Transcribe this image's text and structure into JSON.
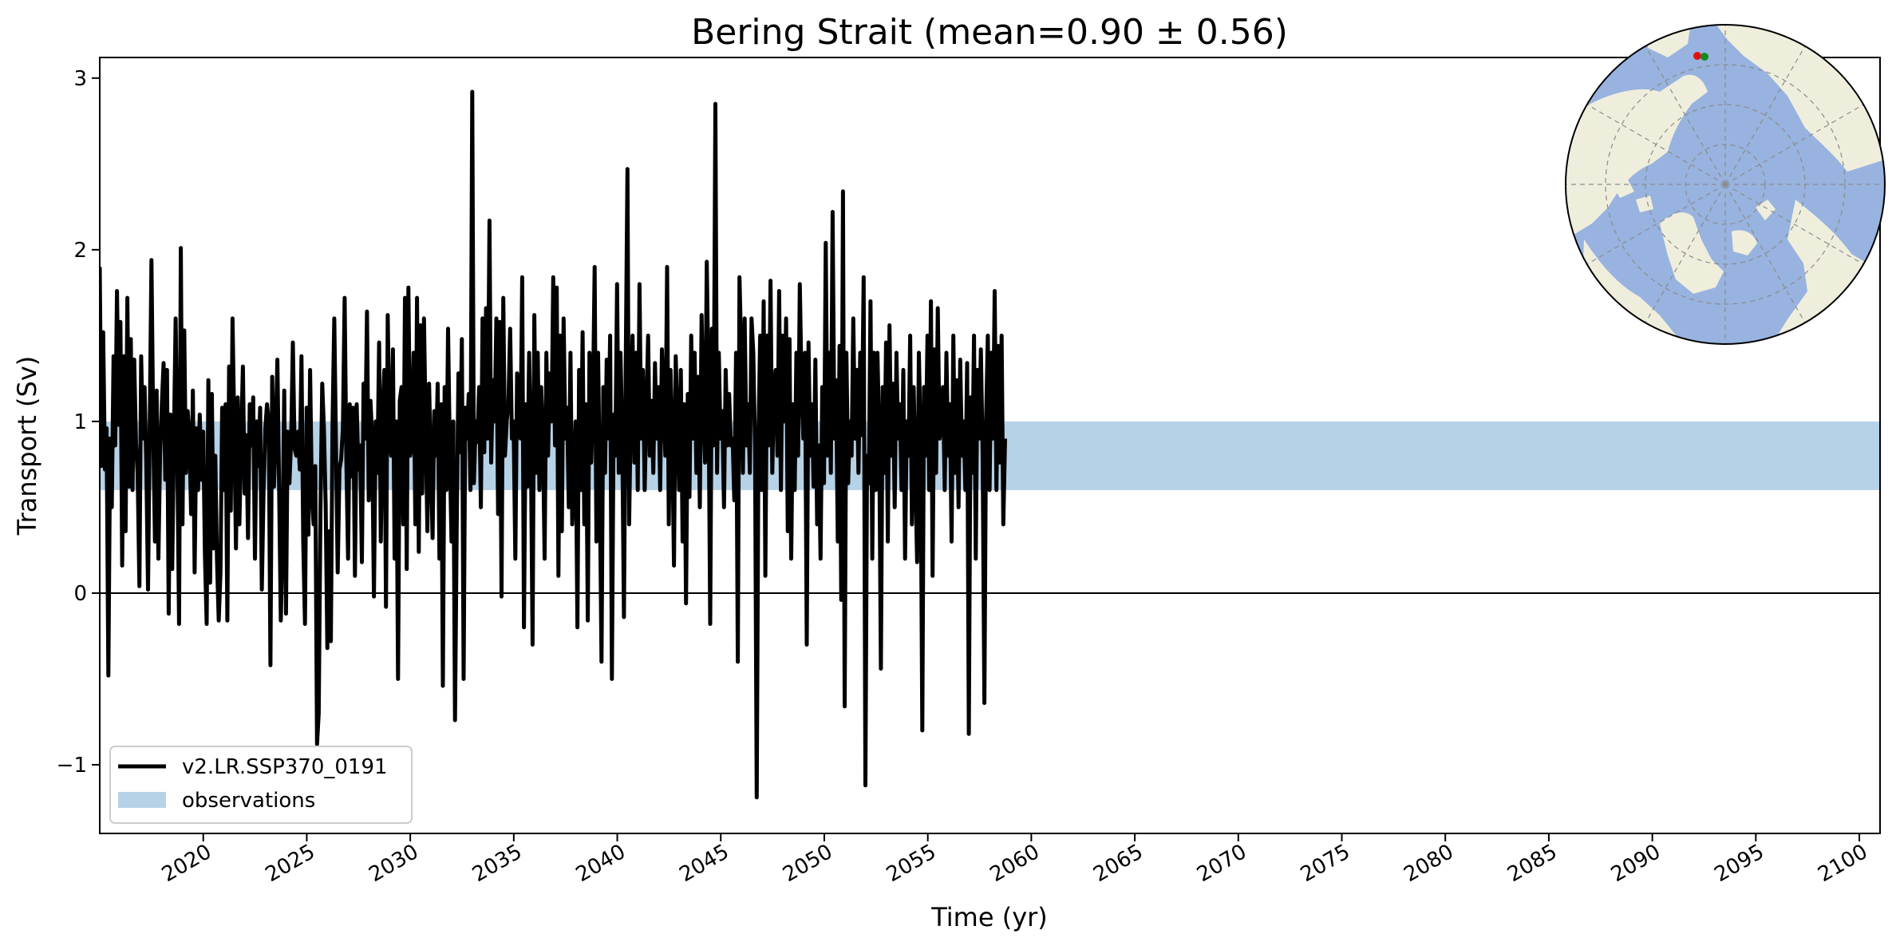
{
  "chart_data": {
    "type": "line",
    "title": "Bering Strait (mean=0.90 ± 0.56)",
    "xlabel": "Time (yr)",
    "ylabel": "Transport (Sv)",
    "xlim": [
      2015.0,
      2101.0
    ],
    "ylim": [
      -1.4,
      3.12
    ],
    "xticks": [
      2020,
      2025,
      2030,
      2035,
      2040,
      2045,
      2050,
      2055,
      2060,
      2065,
      2070,
      2075,
      2080,
      2085,
      2090,
      2095,
      2100
    ],
    "xtick_labels": [
      "2020",
      "2025",
      "2030",
      "2035",
      "2040",
      "2045",
      "2050",
      "2055",
      "2060",
      "2065",
      "2070",
      "2075",
      "2080",
      "2085",
      "2090",
      "2095",
      "2100"
    ],
    "yticks": [
      -1,
      0,
      1,
      2,
      3
    ],
    "ytick_labels": [
      "−1",
      "0",
      "1",
      "2",
      "3"
    ],
    "zero_line": 0,
    "observation_band": [
      0.6,
      1.0
    ],
    "legend_position": "lower-left",
    "series": [
      {
        "name": "v2.LR.SSP370_0191",
        "color": "#000000",
        "x_start": 2015.0,
        "x_step": 0.0833,
        "values": [
          1.9,
          0.74,
          1.52,
          0.72,
          0.96,
          -0.48,
          0.9,
          0.5,
          1.38,
          0.86,
          1.76,
          0.98,
          1.58,
          0.16,
          1.38,
          0.36,
          1.72,
          0.62,
          1.48,
          0.6,
          1.36,
          0.88,
          0.7,
          0.04,
          1.38,
          0.9,
          1.2,
          0.76,
          0.02,
          1.0,
          1.94,
          0.96,
          0.3,
          1.18,
          0.2,
          0.8,
          1.1,
          1.34,
          0.66,
          1.3,
          -0.12,
          1.04,
          0.14,
          0.88,
          1.6,
          0.8,
          -0.18,
          2.01,
          0.4,
          1.53,
          0.7,
          1.06,
          0.9,
          0.46,
          1.18,
          0.12,
          0.96,
          0.6,
          1.04,
          0.66,
          0.94,
          0.22,
          -0.18,
          1.24,
          0.06,
          1.16,
          0.26,
          0.8,
          0.2,
          -0.16,
          0.12,
          1.08,
          0.6,
          1.1,
          -0.16,
          1.32,
          0.48,
          1.6,
          0.96,
          0.26,
          1.14,
          0.4,
          0.9,
          1.32,
          0.58,
          0.92,
          0.32,
          1.1,
          0.86,
          1.14,
          0.2,
          1.0,
          0.74,
          1.08,
          0.02,
          0.6,
          0.96,
          1.1,
          1.0,
          -0.42,
          1.26,
          0.62,
          0.9,
          1.36,
          0.64,
          -0.16,
          0.3,
          1.18,
          -0.12,
          0.94,
          0.64,
          0.9,
          1.46,
          0.84,
          0.8,
          0.94,
          0.72,
          1.38,
          0.3,
          -0.18,
          1.08,
          0.34,
          1.3,
          0.58,
          0.4,
          0.74,
          -0.88,
          -0.7,
          0.48,
          1.22,
          0.96,
          0.52,
          -0.32,
          0.36,
          -0.28,
          0.98,
          1.6,
          0.84,
          0.12,
          0.72,
          0.78,
          0.96,
          1.72,
          0.78,
          0.2,
          1.1,
          0.68,
          1.08,
          0.1,
          1.1,
          0.72,
          0.86,
          0.18,
          1.22,
          0.9,
          1.64,
          0.54,
          1.12,
          0.9,
          -0.02,
          1.0,
          0.7,
          1.46,
          0.3,
          1.04,
          1.3,
          -0.08,
          1.62,
          0.92,
          0.8,
          1.42,
          0.2,
          1.0,
          -0.5,
          1.12,
          1.2,
          0.4,
          1.72,
          0.14,
          1.78,
          0.8,
          0.86,
          1.4,
          0.4,
          1.72,
          0.24,
          1.56,
          0.58,
          1.6,
          0.98,
          0.36,
          1.22,
          0.76,
          0.32,
          1.06,
          0.8,
          1.22,
          0.2,
          1.1,
          -0.54,
          1.2,
          0.6,
          1.54,
          0.82,
          0.3,
          1.0,
          -0.74,
          0.36,
          1.28,
          0.82,
          1.48,
          -0.5,
          1.08,
          0.9,
          1.16,
          0.6,
          2.92,
          0.64,
          1.0,
          0.88,
          1.2,
          0.5,
          1.6,
          0.82,
          1.66,
          0.9,
          2.17,
          0.76,
          1.24,
          1.0,
          1.6,
          0.46,
          1.58,
          -0.02,
          1.72,
          0.8,
          1.0,
          1.1,
          1.54,
          0.9,
          1.0,
          0.2,
          1.28,
          1.1,
          0.9,
          1.84,
          -0.2,
          1.1,
          0.62,
          1.4,
          0.9,
          -0.3,
          1.62,
          0.7,
          1.4,
          0.6,
          1.2,
          0.9,
          0.2,
          1.4,
          0.8,
          1.28,
          1.0,
          1.84,
          0.86,
          1.78,
          0.1,
          1.5,
          0.36,
          1.6,
          0.9,
          1.08,
          0.5,
          1.4,
          0.4,
          0.7,
          1.0,
          -0.2,
          1.3,
          0.6,
          1.52,
          0.4,
          1.1,
          -0.16,
          1.4,
          0.76,
          1.1,
          1.9,
          0.3,
          1.4,
          0.6,
          -0.4,
          1.2,
          0.7,
          1.36,
          0.9,
          1.5,
          -0.5,
          1.04,
          0.8,
          1.8,
          0.7,
          1.4,
          0.9,
          -0.14,
          1.3,
          2.47,
          0.4,
          1.1,
          1.5,
          0.76,
          1.4,
          0.6,
          1.8,
          0.9,
          1.3,
          0.6,
          1.06,
          1.5,
          0.8,
          1.12,
          0.7,
          1.34,
          0.9,
          1.2,
          0.6,
          1.42,
          1.1,
          0.8,
          1.9,
          0.4,
          1.3,
          0.94,
          0.16,
          1.38,
          1.0,
          0.6,
          1.3,
          0.3,
          1.1,
          -0.06,
          1.16,
          0.56,
          1.5,
          0.9,
          1.4,
          0.7,
          1.26,
          0.5,
          1.62,
          1.1,
          0.76,
          1.93,
          1.24,
          -0.18,
          1.54,
          0.86,
          2.85,
          0.7,
          1.4,
          0.9,
          1.06,
          0.5,
          1.3,
          0.86,
          1.16,
          0.86,
          0.9,
          0.54,
          1.4,
          -0.4,
          1.84,
          1.4,
          0.7,
          1.6,
          0.86,
          1.1,
          0.7,
          1.6,
          1.4,
          0.84,
          -1.19,
          0.9,
          1.5,
          0.6,
          1.7,
          0.1,
          1.5,
          0.86,
          1.82,
          0.7,
          1.2,
          1.3,
          0.8,
          1.76,
          0.6,
          1.5,
          1.0,
          1.6,
          0.36,
          1.48,
          0.2,
          1.1,
          0.6,
          1.4,
          0.8,
          1.8,
          1.2,
          0.9,
          1.4,
          -0.3,
          1.46,
          0.8,
          1.1,
          0.62,
          1.36,
          0.4,
          0.86,
          0.2,
          1.2,
          0.64,
          2.04,
          0.8,
          1.4,
          0.7,
          2.22,
          0.9,
          1.24,
          0.3,
          1.44,
          -0.04,
          2.34,
          -0.66,
          1.4,
          0.64,
          1.0,
          0.8,
          1.6,
          0.9,
          1.3,
          0.7,
          1.4,
          0.92,
          1.84,
          -1.12,
          0.8,
          0.64,
          1.7,
          0.2,
          1.4,
          0.6,
          1.4,
          0.9,
          -0.44,
          1.2,
          0.7,
          1.46,
          0.3,
          1.56,
          0.8,
          1.22,
          0.5,
          1.4,
          0.9,
          1.1,
          0.6,
          1.3,
          0.2,
          1.0,
          0.8,
          1.5,
          0.4,
          1.2,
          0.7,
          0.18,
          1.4,
          0.9,
          -0.8,
          1.2,
          0.8,
          1.5,
          0.6,
          1.7,
          0.1,
          1.42,
          0.7,
          1.66,
          0.9,
          1.0,
          1.2,
          0.6,
          1.4,
          0.8,
          1.1,
          0.3,
          1.5,
          0.7,
          1.24,
          0.5,
          1.36,
          0.8,
          1.0,
          0.6,
          1.34,
          -0.82,
          1.14,
          0.7,
          1.5,
          0.2,
          1.3,
          0.9,
          1.42,
          0.8,
          -0.64,
          1.0,
          1.5,
          0.6,
          1.4,
          0.9,
          1.76,
          0.6,
          1.44,
          0.76,
          1.5,
          0.4,
          0.9
        ]
      }
    ],
    "legend": [
      {
        "label": "v2.LR.SSP370_0191",
        "color": "#000000",
        "kind": "line"
      },
      {
        "label": "observations",
        "color": "#b6d2e7",
        "kind": "patch"
      }
    ],
    "inset_map": {
      "ocean_color": "#98b3df",
      "land_color": "#efeedd",
      "markers": [
        {
          "color": "#e4100f"
        },
        {
          "color": "#128c20"
        }
      ]
    }
  }
}
